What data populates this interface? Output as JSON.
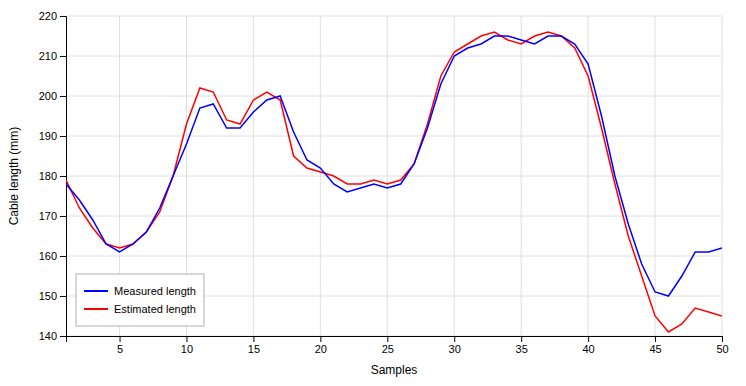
{
  "chart_data": {
    "type": "line",
    "xlabel": "Samples",
    "ylabel": "Cable length (mm)",
    "x": [
      1,
      2,
      3,
      4,
      5,
      6,
      7,
      8,
      9,
      10,
      11,
      12,
      13,
      14,
      15,
      16,
      17,
      18,
      19,
      20,
      21,
      22,
      23,
      24,
      25,
      26,
      27,
      28,
      29,
      30,
      31,
      32,
      33,
      34,
      35,
      36,
      37,
      38,
      39,
      40,
      41,
      42,
      43,
      44,
      45,
      46,
      47,
      48,
      49,
      50
    ],
    "series": [
      {
        "name": "Measured length",
        "color": "#0000ff",
        "values": [
          178,
          174,
          169,
          163,
          161,
          163,
          166,
          172,
          180,
          188,
          197,
          198,
          192,
          192,
          196,
          199,
          200,
          191,
          184,
          182,
          178,
          176,
          177,
          178,
          177,
          178,
          183,
          192,
          203,
          210,
          212,
          213,
          215,
          215,
          214,
          213,
          215,
          215,
          213,
          208,
          195,
          180,
          168,
          158,
          151,
          150,
          155,
          161,
          161,
          162
        ]
      },
      {
        "name": "Estimated length",
        "color": "#ff0000",
        "values": [
          179,
          172,
          167,
          163,
          162,
          163,
          166,
          171,
          180,
          193,
          202,
          201,
          194,
          193,
          199,
          201,
          199,
          185,
          182,
          181,
          180,
          178,
          178,
          179,
          178,
          179,
          183,
          193,
          205,
          211,
          213,
          215,
          216,
          214,
          213,
          215,
          216,
          215,
          212,
          205,
          192,
          178,
          165,
          155,
          145,
          141,
          143,
          147,
          146,
          145
        ]
      }
    ],
    "xlim": [
      1,
      50
    ],
    "ylim": [
      140,
      220
    ],
    "xticks": [
      5,
      10,
      15,
      20,
      25,
      30,
      35,
      40,
      45,
      50
    ],
    "yticks": [
      140,
      150,
      160,
      170,
      180,
      190,
      200,
      210,
      220
    ],
    "grid": true,
    "legend": "lower left"
  }
}
